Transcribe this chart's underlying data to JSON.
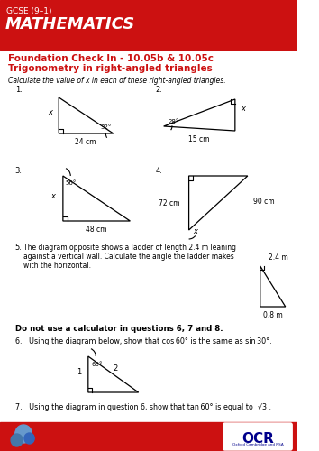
{
  "header_bg": "#cc1111",
  "header_text1": "GCSE (9–1)",
  "header_text2": "MATHEMATICS",
  "title_color": "#cc1111",
  "title1": "Foundation Check In - 10.05b & 10.05c",
  "title2": "Trigonometry in right-angled triangles",
  "instruction": "Calculate the value of x in each of these right-angled triangles.",
  "footer_bg": "#cc1111",
  "q6_instruction": "Do not use a calculator in questions 6, 7 and 8.",
  "q6_text": "6.   Using the diagram below, show that cos 60° is the same as sin 30°.",
  "q7_text": "7.   Using the diagram in question 6, show that tan 60° is equal to  √3 ."
}
